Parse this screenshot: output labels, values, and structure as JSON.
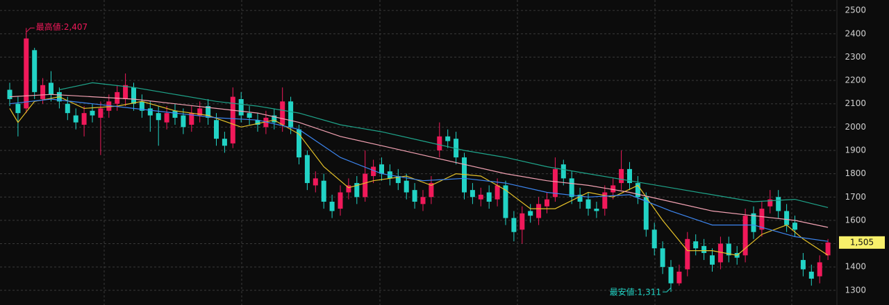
{
  "chart_data": {
    "type": "candlestick",
    "open": [
      2160,
      2100,
      2080,
      2330,
      2120,
      2190,
      2150,
      2100,
      2050,
      2010,
      2070,
      2040,
      2070,
      2100,
      2120,
      2170,
      2110,
      2080,
      2060,
      2020,
      2070,
      2050,
      2010,
      2050,
      2090,
      2030,
      1950,
      1930,
      2120,
      2060,
      2030,
      2000,
      2050,
      2010,
      2110,
      1990,
      1880,
      1750,
      1770,
      1680,
      1650,
      1720,
      1760,
      1700,
      1790,
      1840,
      1810,
      1790,
      1770,
      1730,
      1670,
      1700,
      1900,
      1960,
      1950,
      1870,
      1730,
      1690,
      1720,
      1690,
      1750,
      1610,
      1560,
      1640,
      1610,
      1660,
      1700,
      1840,
      1780,
      1710,
      1690,
      1650,
      1650,
      1720,
      1760,
      1820,
      1760,
      1700,
      1560,
      1480,
      1400,
      1330,
      1390,
      1510,
      1490,
      1450,
      1420,
      1500,
      1460,
      1450,
      1630,
      1560,
      1660,
      1700,
      1640,
      1590,
      1430,
      1380,
      1360,
      1450
    ],
    "high": [
      2190,
      2130,
      2407,
      2340,
      2210,
      2240,
      2170,
      2130,
      2080,
      2090,
      2100,
      2110,
      2140,
      2180,
      2230,
      2190,
      2140,
      2110,
      2090,
      2090,
      2100,
      2080,
      2090,
      2110,
      2120,
      2060,
      1980,
      2170,
      2150,
      2090,
      2060,
      2070,
      2080,
      2170,
      2130,
      2010,
      1900,
      1810,
      1800,
      1710,
      1750,
      1780,
      1790,
      1900,
      1860,
      1870,
      1840,
      1820,
      1800,
      1760,
      1730,
      1790,
      2020,
      1990,
      1980,
      1890,
      1760,
      1740,
      1750,
      1780,
      1770,
      1640,
      1660,
      1670,
      1700,
      1720,
      1870,
      1860,
      1810,
      1740,
      1720,
      1680,
      1750,
      1780,
      1900,
      1850,
      1790,
      1720,
      1590,
      1510,
      1430,
      1410,
      1550,
      1540,
      1520,
      1480,
      1530,
      1530,
      1490,
      1650,
      1660,
      1680,
      1730,
      1730,
      1670,
      1620,
      1460,
      1410,
      1450,
      1520
    ],
    "low": [
      2090,
      1960,
      2060,
      2120,
      2100,
      2110,
      2080,
      2030,
      1990,
      1960,
      2020,
      1880,
      2040,
      2070,
      2090,
      2070,
      2040,
      1980,
      1920,
      1990,
      2010,
      1970,
      1980,
      2020,
      2010,
      1920,
      1890,
      1910,
      2020,
      2010,
      1980,
      1970,
      1990,
      1980,
      1970,
      1840,
      1730,
      1720,
      1650,
      1610,
      1620,
      1690,
      1670,
      1680,
      1760,
      1770,
      1750,
      1730,
      1690,
      1650,
      1640,
      1670,
      1870,
      1910,
      1840,
      1690,
      1670,
      1660,
      1650,
      1660,
      1580,
      1510,
      1500,
      1590,
      1580,
      1630,
      1680,
      1750,
      1670,
      1650,
      1620,
      1610,
      1620,
      1690,
      1730,
      1730,
      1670,
      1530,
      1450,
      1370,
      1311,
      1320,
      1360,
      1450,
      1430,
      1380,
      1390,
      1420,
      1410,
      1420,
      1520,
      1530,
      1630,
      1610,
      1550,
      1530,
      1360,
      1320,
      1330,
      1430
    ],
    "close": [
      2120,
      2060,
      2380,
      2150,
      2180,
      2140,
      2110,
      2060,
      2020,
      2060,
      2050,
      2080,
      2110,
      2150,
      2180,
      2100,
      2070,
      2050,
      2030,
      2060,
      2040,
      2000,
      2060,
      2080,
      2040,
      1950,
      1920,
      2130,
      2050,
      2040,
      2010,
      2040,
      2020,
      2110,
      2000,
      1870,
      1760,
      1780,
      1680,
      1640,
      1720,
      1750,
      1700,
      1800,
      1830,
      1800,
      1780,
      1760,
      1720,
      1680,
      1700,
      1760,
      1960,
      1940,
      1870,
      1720,
      1700,
      1710,
      1680,
      1750,
      1610,
      1550,
      1630,
      1620,
      1670,
      1690,
      1820,
      1780,
      1700,
      1680,
      1650,
      1640,
      1720,
      1750,
      1820,
      1760,
      1700,
      1560,
      1480,
      1400,
      1330,
      1380,
      1520,
      1480,
      1460,
      1410,
      1500,
      1450,
      1440,
      1620,
      1550,
      1650,
      1690,
      1640,
      1580,
      1560,
      1390,
      1350,
      1420,
      1505
    ],
    "up_color": "#f0195a",
    "down_color": "#22d3c5",
    "series": [
      {
        "color": "#e6c229",
        "x": [
          0,
          1,
          3,
          6,
          9,
          13,
          16,
          20,
          24,
          28,
          32,
          35,
          38,
          41,
          44,
          48,
          51,
          54,
          57,
          60,
          63,
          66,
          70,
          73,
          76,
          79,
          82,
          85,
          88,
          91,
          94,
          96,
          99
        ],
        "values": [
          2080,
          2020,
          2110,
          2130,
          2080,
          2090,
          2110,
          2070,
          2050,
          2000,
          2030,
          1970,
          1830,
          1740,
          1770,
          1790,
          1750,
          1800,
          1790,
          1730,
          1650,
          1650,
          1720,
          1700,
          1750,
          1600,
          1470,
          1470,
          1450,
          1540,
          1580,
          1520,
          1450
        ]
      },
      {
        "color": "#3d86f0",
        "x": [
          0,
          5,
          10,
          15,
          20,
          25,
          30,
          35,
          40,
          45,
          50,
          55,
          60,
          65,
          70,
          75,
          80,
          85,
          90,
          95,
          99
        ],
        "values": [
          2100,
          2120,
          2100,
          2080,
          2060,
          2040,
          2030,
          1990,
          1870,
          1800,
          1770,
          1780,
          1760,
          1720,
          1700,
          1710,
          1640,
          1580,
          1580,
          1530,
          1510
        ]
      },
      {
        "color": "#f4a3b4",
        "x": [
          0,
          5,
          10,
          15,
          20,
          25,
          30,
          35,
          40,
          45,
          50,
          55,
          60,
          65,
          70,
          75,
          80,
          85,
          90,
          95,
          99
        ],
        "values": [
          2130,
          2140,
          2130,
          2120,
          2100,
          2080,
          2060,
          2020,
          1960,
          1920,
          1880,
          1840,
          1800,
          1770,
          1750,
          1720,
          1680,
          1640,
          1620,
          1600,
          1570
        ]
      },
      {
        "color": "#1fa58b",
        "x": [
          6,
          10,
          15,
          20,
          25,
          30,
          35,
          40,
          45,
          50,
          55,
          60,
          65,
          70,
          75,
          80,
          85,
          90,
          95,
          99
        ],
        "values": [
          2160,
          2190,
          2170,
          2140,
          2110,
          2090,
          2060,
          2010,
          1980,
          1940,
          1900,
          1870,
          1830,
          1800,
          1770,
          1740,
          1710,
          1680,
          1690,
          1655
        ]
      }
    ],
    "annotations": [
      {
        "text": "最高値:2,407",
        "value": 2407,
        "x": 2,
        "color": "#f0195a"
      },
      {
        "text": "最安値:1,311",
        "value": 1311,
        "x": 80,
        "color": "#22d3c5"
      }
    ],
    "last_price": {
      "value": 1505,
      "label": "1,505"
    },
    "ylim": [
      1237,
      2545
    ],
    "yticks": [
      1300,
      1400,
      1500,
      1600,
      1700,
      1800,
      1900,
      2000,
      2100,
      2200,
      2300,
      2400,
      2500
    ],
    "grid": true
  }
}
